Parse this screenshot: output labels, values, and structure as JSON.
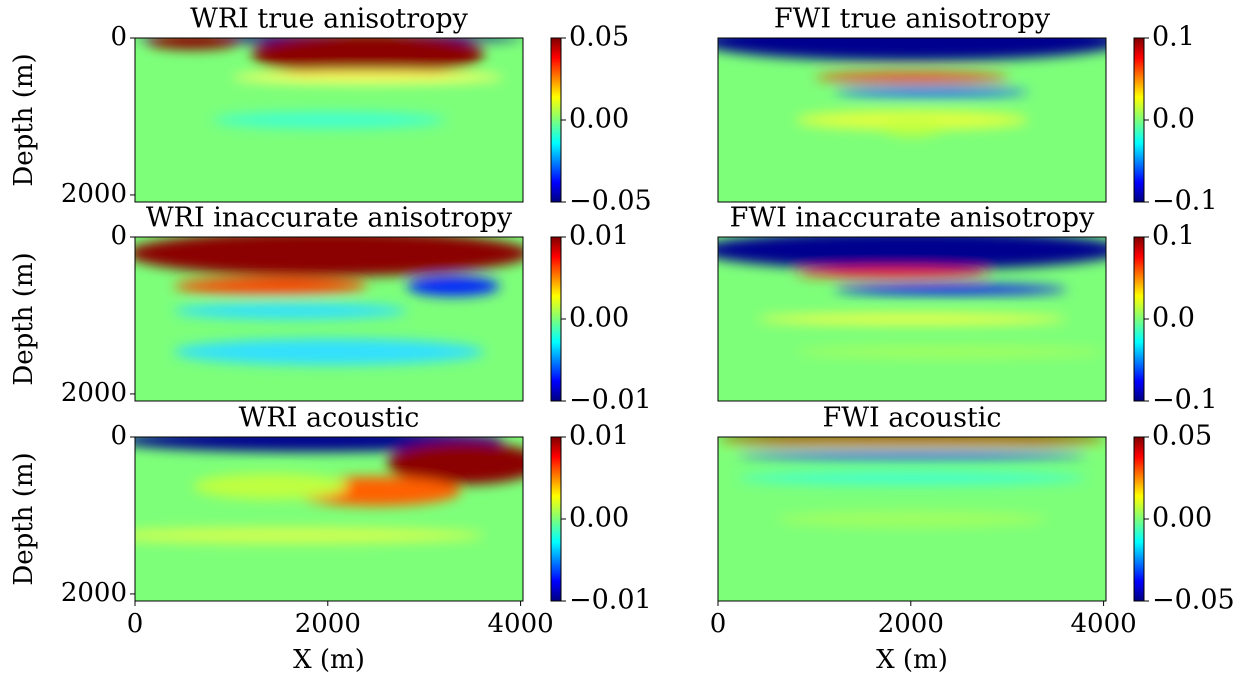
{
  "chart_data": [
    {
      "type": "heatmap",
      "title": "WRI true anisotropy",
      "ylabel": "Depth (m)",
      "xlim": [
        0,
        4025
      ],
      "ylim": [
        0,
        2090
      ],
      "yticks": [
        0,
        2000
      ],
      "clim": [
        -0.05,
        0.05
      ],
      "cticks": [
        {
          "value": 0.05,
          "label": "0.05"
        },
        {
          "value": 0,
          "label": "0.00"
        },
        {
          "value": -0.05,
          "label": "−0.05"
        }
      ]
    },
    {
      "type": "heatmap",
      "title": "FWI true anisotropy",
      "xlim": [
        0,
        4025
      ],
      "ylim": [
        0,
        2090
      ],
      "clim": [
        -0.1,
        0.1
      ],
      "cticks": [
        {
          "value": 0.1,
          "label": "0.1"
        },
        {
          "value": 0,
          "label": "0.0"
        },
        {
          "value": -0.1,
          "label": "−0.1"
        }
      ]
    },
    {
      "type": "heatmap",
      "title": "WRI inaccurate anisotropy",
      "ylabel": "Depth (m)",
      "xlim": [
        0,
        4025
      ],
      "ylim": [
        0,
        2090
      ],
      "yticks": [
        0,
        2000
      ],
      "clim": [
        -0.01,
        0.01
      ],
      "cticks": [
        {
          "value": 0.01,
          "label": "0.01"
        },
        {
          "value": 0,
          "label": "0.00"
        },
        {
          "value": -0.01,
          "label": "−0.01"
        }
      ]
    },
    {
      "type": "heatmap",
      "title": "FWI inaccurate anisotropy",
      "xlim": [
        0,
        4025
      ],
      "ylim": [
        0,
        2090
      ],
      "clim": [
        -0.1,
        0.1
      ],
      "cticks": [
        {
          "value": 0.1,
          "label": "0.1"
        },
        {
          "value": 0,
          "label": "0.0"
        },
        {
          "value": -0.1,
          "label": "−0.1"
        }
      ]
    },
    {
      "type": "heatmap",
      "title": "WRI acoustic",
      "ylabel": "Depth (m)",
      "xlabel": "X (m)",
      "xlim": [
        0,
        4025
      ],
      "ylim": [
        0,
        2090
      ],
      "xticks": [
        0,
        2000,
        4000
      ],
      "yticks": [
        0,
        2000
      ],
      "clim": [
        -0.01,
        0.01
      ],
      "cticks": [
        {
          "value": 0.01,
          "label": "0.01"
        },
        {
          "value": 0,
          "label": "0.00"
        },
        {
          "value": -0.01,
          "label": "−0.01"
        }
      ]
    },
    {
      "type": "heatmap",
      "title": "FWI acoustic",
      "xlabel": "X (m)",
      "xlim": [
        0,
        4025
      ],
      "ylim": [
        0,
        2090
      ],
      "xticks": [
        0,
        2000,
        4000
      ],
      "clim": [
        -0.05,
        0.05
      ],
      "cticks": [
        {
          "value": 0.05,
          "label": "0.05"
        },
        {
          "value": 0,
          "label": "0.00"
        },
        {
          "value": -0.05,
          "label": "−0.05"
        }
      ]
    }
  ]
}
